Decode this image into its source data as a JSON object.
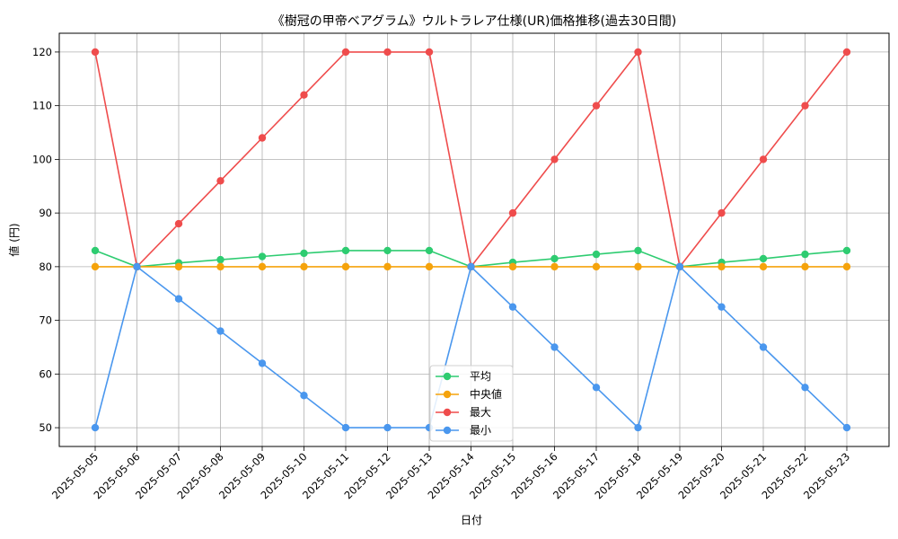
{
  "chart_data": {
    "type": "line",
    "title": "《樹冠の甲帝ベアグラム》ウルトラレア仕様(UR)価格推移(過去30日間)",
    "xlabel": "日付",
    "ylabel": "値 (円)",
    "ylim": [
      46.5,
      123.5
    ],
    "yticks": [
      50,
      60,
      70,
      80,
      90,
      100,
      110,
      120
    ],
    "grid": true,
    "legend_position": "lower-center",
    "categories": [
      "2025-05-05",
      "2025-05-06",
      "2025-05-07",
      "2025-05-08",
      "2025-05-09",
      "2025-05-10",
      "2025-05-11",
      "2025-05-12",
      "2025-05-13",
      "2025-05-14",
      "2025-05-15",
      "2025-05-16",
      "2025-05-17",
      "2025-05-18",
      "2025-05-19",
      "2025-05-20",
      "2025-05-21",
      "2025-05-22",
      "2025-05-23"
    ],
    "series": [
      {
        "name": "平均",
        "color": "#2ecc71",
        "values": [
          83,
          80,
          80.7,
          81.3,
          81.9,
          82.5,
          83,
          83,
          83,
          80,
          80.8,
          81.5,
          82.3,
          83,
          80,
          80.8,
          81.5,
          82.3,
          83
        ]
      },
      {
        "name": "中央値",
        "color": "#f5a30c",
        "values": [
          80,
          80,
          80,
          80,
          80,
          80,
          80,
          80,
          80,
          80,
          80,
          80,
          80,
          80,
          80,
          80,
          80,
          80,
          80
        ]
      },
      {
        "name": "最大",
        "color": "#ef4c4c",
        "values": [
          120,
          80,
          88,
          96,
          104,
          112,
          120,
          120,
          120,
          80,
          90,
          100,
          110,
          120,
          80,
          90,
          100,
          110,
          120
        ]
      },
      {
        "name": "最小",
        "color": "#4a97ee",
        "values": [
          50,
          80,
          74,
          68,
          62,
          56,
          50,
          50,
          50,
          80,
          72.5,
          65,
          57.5,
          50,
          80,
          72.5,
          65,
          57.5,
          50
        ]
      }
    ]
  }
}
